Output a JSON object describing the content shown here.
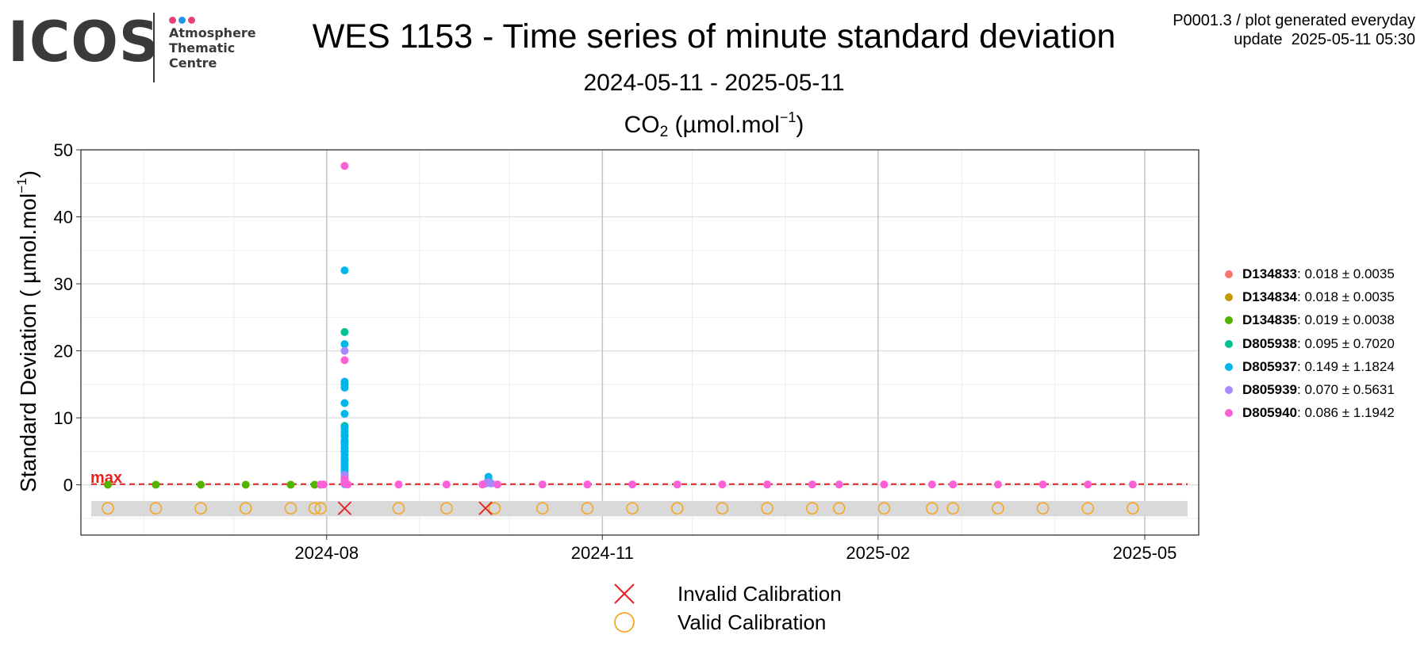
{
  "logo": {
    "wordmark": "ICOS",
    "lines": [
      "Atmosphere",
      "Thematic",
      "Centre"
    ],
    "dot_colors": [
      "#e8407a",
      "#1e96e6",
      "#e8407a"
    ]
  },
  "title": "WES 1153 - Time series of minute standard deviation",
  "subtitle": "2024-05-11 - 2025-05-11",
  "chart_title": {
    "species": "CO",
    "subscript": "2",
    "unit_prefix": " (µmol.mol",
    "unit_exponent": "−1",
    "unit_suffix": ")"
  },
  "note": {
    "line1": "P0001.3 / plot generated everyday",
    "line2": "update  2025-05-11 05:30"
  },
  "chart_data": {
    "type": "scatter",
    "ylabel": {
      "text": "Standard Deviation ( µmol.mol",
      "exponent": "−1",
      "suffix": ")"
    },
    "xlim": [
      "2024-05-11",
      "2025-05-19"
    ],
    "ylim": [
      -7.5,
      50
    ],
    "yticks": [
      0,
      10,
      20,
      30,
      40,
      50
    ],
    "xticks": [
      "2024-08-01",
      "2024-11-01",
      "2025-02-01",
      "2025-05-01"
    ],
    "xtick_labels": [
      "2024-08",
      "2024-11",
      "2025-02",
      "2025-05"
    ],
    "grid": true,
    "max_line": {
      "label": "max",
      "value": 0.1,
      "color": "#e8201e"
    },
    "calibration_band": [
      -4.7,
      -2.4
    ],
    "series": [
      {
        "name": "D134833",
        "stats": ": 0.018 ± 0.0035",
        "color": "#f8766d"
      },
      {
        "name": "D134834",
        "stats": ": 0.018 ± 0.0035",
        "color": "#c49a00"
      },
      {
        "name": "D134835",
        "stats": ": 0.019 ± 0.0038",
        "color": "#53b400",
        "x": [
          "2024-05-20",
          "2024-06-05",
          "2024-06-20",
          "2024-07-05",
          "2024-07-20",
          "2024-07-28",
          "2024-07-30"
        ],
        "y": [
          0.02,
          0.02,
          0.02,
          0.02,
          0.02,
          0.02,
          0.02
        ]
      },
      {
        "name": "D805938",
        "stats": ": 0.095 ± 0.7020",
        "color": "#00c094",
        "x": [
          "2024-08-07",
          "2024-08-07",
          "2024-08-07",
          "2024-08-07",
          "2024-08-07",
          "2024-08-07",
          "2024-08-07"
        ],
        "y": [
          22.8,
          15.0,
          8.8,
          7.5,
          6.3,
          5.0,
          3.8
        ]
      },
      {
        "name": "D805937",
        "stats": ": 0.149 ± 1.1824",
        "color": "#00b6eb",
        "x": [
          "2024-08-07",
          "2024-08-07",
          "2024-08-07",
          "2024-08-07",
          "2024-08-07",
          "2024-08-07",
          "2024-08-07",
          "2024-08-07",
          "2024-08-07",
          "2024-08-07",
          "2024-08-07",
          "2024-08-07",
          "2024-08-07",
          "2024-08-07",
          "2024-08-07",
          "2024-08-07",
          "2024-08-07",
          "2024-08-07",
          "2024-08-07",
          "2024-08-07",
          "2024-08-07",
          "2024-08-07",
          "2024-08-07",
          "2024-08-07",
          "2024-08-07",
          "2024-08-07",
          "2024-09-24",
          "2024-09-24",
          "2024-09-24",
          "2024-09-24"
        ],
        "y": [
          32.0,
          21.0,
          15.4,
          14.5,
          12.2,
          10.6,
          8.5,
          8.0,
          7.2,
          6.6,
          6.0,
          5.5,
          5.0,
          4.5,
          4.0,
          3.6,
          3.2,
          2.8,
          2.4,
          2.0,
          1.6,
          1.2,
          0.9,
          0.6,
          0.3,
          0.1,
          1.2,
          0.9,
          0.6,
          0.3
        ]
      },
      {
        "name": "D805939",
        "stats": ": 0.070 ± 0.5631",
        "color": "#a58aff",
        "x": [
          "2024-08-07",
          "2024-08-07",
          "2024-08-07",
          "2024-08-07",
          "2024-08-07",
          "2024-09-23",
          "2024-09-24",
          "2024-09-25"
        ],
        "y": [
          20.0,
          1.5,
          0.8,
          0.5,
          0.2,
          0.2,
          0.4,
          0.2
        ]
      },
      {
        "name": "D805940",
        "stats": ": 0.086 ± 1.1942",
        "color": "#fb61d7",
        "x": [
          "2024-08-07",
          "2024-08-07",
          "2024-08-07",
          "2024-08-07",
          "2024-08-07",
          "2024-08-08",
          "2024-07-31",
          "2024-07-30",
          "2024-08-25",
          "2024-09-10",
          "2024-09-22",
          "2024-09-27",
          "2024-10-12",
          "2024-10-27",
          "2024-11-11",
          "2024-11-26",
          "2024-12-11",
          "2024-12-26",
          "2025-01-10",
          "2025-01-19",
          "2025-02-03",
          "2025-02-19",
          "2025-02-26",
          "2025-03-13",
          "2025-03-28",
          "2025-04-12",
          "2025-04-27"
        ],
        "y": [
          47.6,
          18.6,
          0.8,
          0.4,
          0.2,
          0.05,
          0.05,
          0.05,
          0.05,
          0.05,
          0.05,
          0.05,
          0.05,
          0.05,
          0.05,
          0.05,
          0.05,
          0.05,
          0.05,
          0.05,
          0.05,
          0.05,
          0.05,
          0.05,
          0.05,
          0.05,
          0.05
        ]
      }
    ],
    "calibrations": {
      "y": -3.5,
      "valid": {
        "label": "Valid Calibration",
        "color": "#f5a623",
        "x": [
          "2024-05-20",
          "2024-06-05",
          "2024-06-20",
          "2024-07-05",
          "2024-07-20",
          "2024-07-28",
          "2024-07-30",
          "2024-08-25",
          "2024-09-10",
          "2024-09-26",
          "2024-10-12",
          "2024-10-27",
          "2024-11-11",
          "2024-11-26",
          "2024-12-11",
          "2024-12-26",
          "2025-01-10",
          "2025-01-19",
          "2025-02-03",
          "2025-02-19",
          "2025-02-26",
          "2025-03-13",
          "2025-03-28",
          "2025-04-12",
          "2025-04-27"
        ]
      },
      "invalid": {
        "label": "Invalid Calibration",
        "color": "#e8201e",
        "x": [
          "2024-08-07",
          "2024-09-23"
        ]
      }
    }
  }
}
